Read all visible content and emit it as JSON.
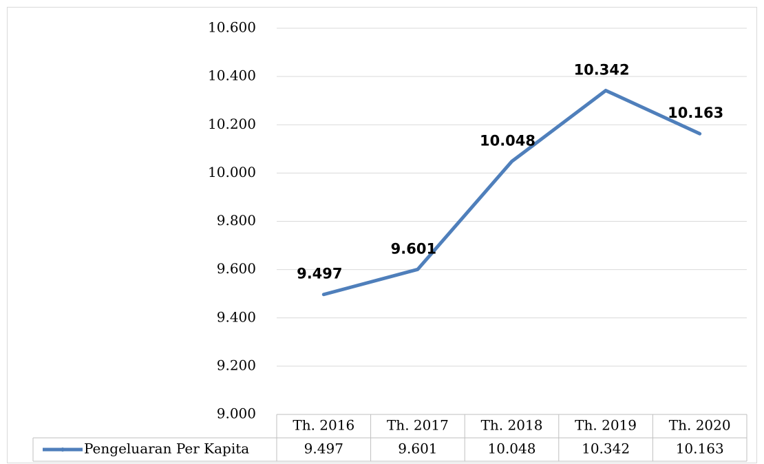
{
  "chart_data": {
    "type": "line",
    "categories": [
      "Th. 2016",
      "Th. 2017",
      "Th. 2018",
      "Th. 2019",
      "Th. 2020"
    ],
    "series": [
      {
        "name": "Pengeluaran Per Kapita",
        "color": "#4f7fbb",
        "values": [
          9497,
          9601,
          10048,
          10342,
          10163
        ],
        "value_labels": [
          "9.497",
          "9.601",
          "10.048",
          "10.342",
          "10.163"
        ]
      }
    ],
    "ylim": [
      9000,
      10600
    ],
    "yticks": [
      {
        "value": 9000,
        "label": "9.000"
      },
      {
        "value": 9200,
        "label": "9.200"
      },
      {
        "value": 9400,
        "label": "9.400"
      },
      {
        "value": 9600,
        "label": "9.600"
      },
      {
        "value": 9800,
        "label": "9.800"
      },
      {
        "value": 10000,
        "label": "10.000"
      },
      {
        "value": 10200,
        "label": "10.200"
      },
      {
        "value": 10400,
        "label": "10.400"
      },
      {
        "value": 10600,
        "label": "10.600"
      }
    ],
    "grid": true,
    "data_table": true
  }
}
